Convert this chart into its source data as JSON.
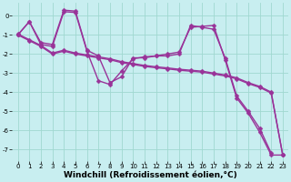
{
  "bg_color": "#c8eef0",
  "grid_color": "#a0d8d0",
  "line_color": "#993399",
  "markersize": 2.5,
  "linewidth": 1.0,
  "xlabel": "Windchill (Refroidissement éolien,°C)",
  "xlabel_fontsize": 6.5,
  "tick_fontsize": 5.0,
  "xlim": [
    -0.5,
    23.5
  ],
  "ylim": [
    -7.6,
    0.7
  ],
  "yticks": [
    0,
    -1,
    -2,
    -3,
    -4,
    -5,
    -6,
    -7
  ],
  "xticks": [
    0,
    1,
    2,
    3,
    4,
    5,
    6,
    7,
    8,
    9,
    10,
    11,
    12,
    13,
    14,
    15,
    16,
    17,
    18,
    19,
    20,
    21,
    22,
    23
  ],
  "series1_x": [
    0,
    1,
    2,
    3,
    4,
    5,
    6,
    7,
    8,
    9,
    10,
    11,
    12,
    13,
    14,
    15,
    16,
    17,
    18,
    19,
    20,
    21,
    22
  ],
  "series1_y": [
    -1.0,
    -0.3,
    -1.4,
    -1.5,
    0.3,
    0.25,
    -1.8,
    -2.1,
    -3.5,
    -3.2,
    -2.2,
    -2.2,
    -2.1,
    -2.1,
    -2.0,
    -0.5,
    -0.6,
    -0.7,
    -2.2,
    -4.2,
    -5.0,
    -5.9,
    -7.2
  ],
  "series2_x": [
    0,
    1,
    2,
    3,
    4,
    5,
    6,
    7,
    8,
    9,
    10,
    11,
    12,
    13,
    14,
    15,
    16,
    17,
    18,
    19,
    20,
    21,
    22,
    23
  ],
  "series2_y": [
    -1.0,
    -0.3,
    -1.5,
    -1.6,
    0.22,
    0.18,
    -1.85,
    -3.4,
    -3.6,
    -2.9,
    -2.25,
    -2.15,
    -2.1,
    -2.0,
    -1.9,
    -0.6,
    -0.55,
    -0.5,
    -2.3,
    -4.3,
    -5.1,
    -6.1,
    -7.3,
    -7.3
  ],
  "series3_x": [
    0,
    1,
    2,
    3,
    4,
    5,
    6,
    7,
    8,
    9,
    10,
    11,
    12,
    13,
    14,
    15,
    16,
    17,
    18,
    19,
    20,
    21,
    22,
    23
  ],
  "series3_y": [
    -1.0,
    -1.3,
    -1.6,
    -2.0,
    -1.85,
    -2.0,
    -2.1,
    -2.2,
    -2.3,
    -2.45,
    -2.55,
    -2.65,
    -2.72,
    -2.78,
    -2.85,
    -2.9,
    -2.95,
    -3.05,
    -3.15,
    -3.3,
    -3.55,
    -3.75,
    -4.05,
    -7.3
  ],
  "series4_x": [
    0,
    1,
    2,
    3,
    4,
    5,
    6,
    7,
    8,
    9,
    10,
    11,
    12,
    13,
    14,
    15,
    16,
    17,
    18,
    19,
    20,
    21,
    22,
    23
  ],
  "series4_y": [
    -0.95,
    -1.25,
    -1.55,
    -1.95,
    -1.8,
    -1.95,
    -2.05,
    -2.15,
    -2.25,
    -2.4,
    -2.5,
    -2.6,
    -2.67,
    -2.73,
    -2.8,
    -2.85,
    -2.9,
    -3.0,
    -3.1,
    -3.25,
    -3.5,
    -3.7,
    -4.0,
    -7.3
  ]
}
